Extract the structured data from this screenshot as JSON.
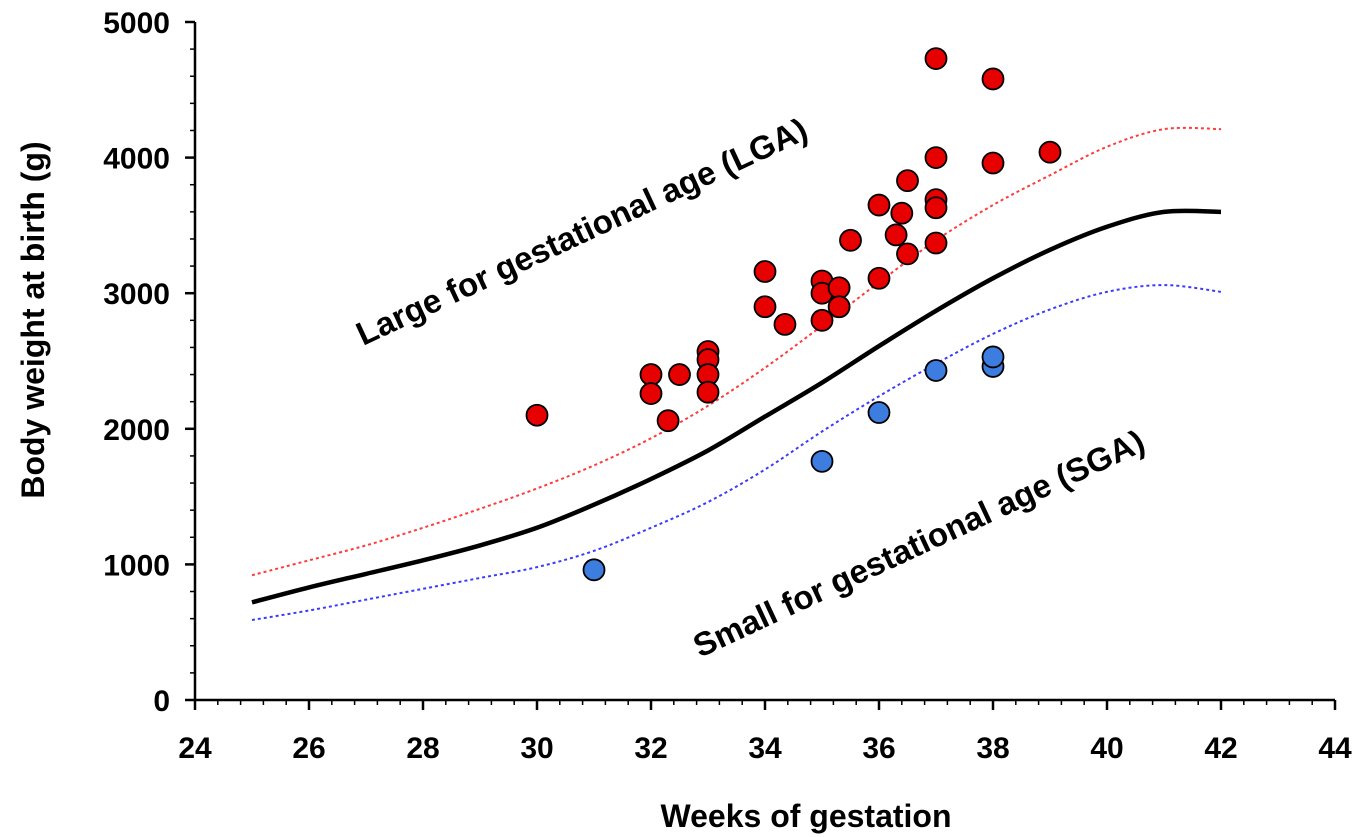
{
  "chart_data": {
    "type": "scatter",
    "xlabel": "Weeks of gestation",
    "ylabel": "Body weight at birth (g)",
    "xlim": [
      24,
      44
    ],
    "ylim": [
      0,
      5000
    ],
    "x_ticks": [
      "24",
      "26",
      "28",
      "30",
      "32",
      "34",
      "36",
      "38",
      "40",
      "42",
      "44"
    ],
    "y_ticks": [
      "0",
      "1000",
      "2000",
      "3000",
      "4000",
      "5000"
    ],
    "grid": false,
    "legend": "none",
    "annotations": {
      "lga": "Large for gestational age (LGA)",
      "sga": "Small for gestational age (SGA)"
    },
    "curves": [
      {
        "role": "upper-percentile",
        "color": "#ff3b3b",
        "style": "dotted",
        "x": [
          25,
          26,
          27,
          28,
          29,
          30,
          31,
          32,
          33,
          34,
          35,
          36,
          37,
          38,
          39,
          40,
          41,
          42
        ],
        "y": [
          920,
          1030,
          1140,
          1270,
          1410,
          1560,
          1730,
          1930,
          2170,
          2450,
          2760,
          3080,
          3390,
          3650,
          3870,
          4080,
          4210,
          4210
        ]
      },
      {
        "role": "median",
        "color": "#000000",
        "style": "solid",
        "x": [
          25,
          26,
          27,
          28,
          29,
          30,
          31,
          32,
          33,
          34,
          35,
          36,
          37,
          38,
          39,
          40,
          41,
          42
        ],
        "y": [
          720,
          830,
          930,
          1030,
          1140,
          1270,
          1440,
          1630,
          1840,
          2090,
          2340,
          2610,
          2870,
          3110,
          3320,
          3490,
          3600,
          3600
        ]
      },
      {
        "role": "lower-percentile",
        "color": "#3b3bff",
        "style": "dotted",
        "x": [
          25,
          26,
          27,
          28,
          29,
          30,
          31,
          32,
          33,
          34,
          35,
          36,
          37,
          38,
          39,
          40,
          41,
          42
        ],
        "y": [
          590,
          660,
          740,
          820,
          900,
          980,
          1100,
          1270,
          1460,
          1700,
          1980,
          2240,
          2480,
          2700,
          2880,
          3010,
          3060,
          3010
        ]
      }
    ],
    "series": [
      {
        "role": "LGA",
        "color": "#e60000",
        "points": [
          [
            30,
            2100
          ],
          [
            32,
            2400
          ],
          [
            32,
            2260
          ],
          [
            32.3,
            2060
          ],
          [
            32.5,
            2400
          ],
          [
            33,
            2570
          ],
          [
            33,
            2510
          ],
          [
            33,
            2400
          ],
          [
            33,
            2270
          ],
          [
            34,
            3160
          ],
          [
            34,
            2900
          ],
          [
            34.35,
            2770
          ],
          [
            35,
            3090
          ],
          [
            35,
            3000
          ],
          [
            35,
            2800
          ],
          [
            35.3,
            3040
          ],
          [
            35.3,
            2900
          ],
          [
            35.5,
            3390
          ],
          [
            36,
            3650
          ],
          [
            36,
            3110
          ],
          [
            36.3,
            3430
          ],
          [
            36.4,
            3590
          ],
          [
            36.5,
            3830
          ],
          [
            36.5,
            3290
          ],
          [
            37,
            4730
          ],
          [
            37,
            4000
          ],
          [
            37,
            3690
          ],
          [
            37,
            3630
          ],
          [
            37,
            3370
          ],
          [
            38,
            4580
          ],
          [
            38,
            3960
          ],
          [
            39,
            4040
          ]
        ]
      },
      {
        "role": "SGA",
        "color": "#3d7de0",
        "points": [
          [
            31,
            960
          ],
          [
            35,
            1760
          ],
          [
            36,
            2120
          ],
          [
            37,
            2430
          ],
          [
            38,
            2460
          ],
          [
            38,
            2530
          ]
        ]
      }
    ]
  }
}
